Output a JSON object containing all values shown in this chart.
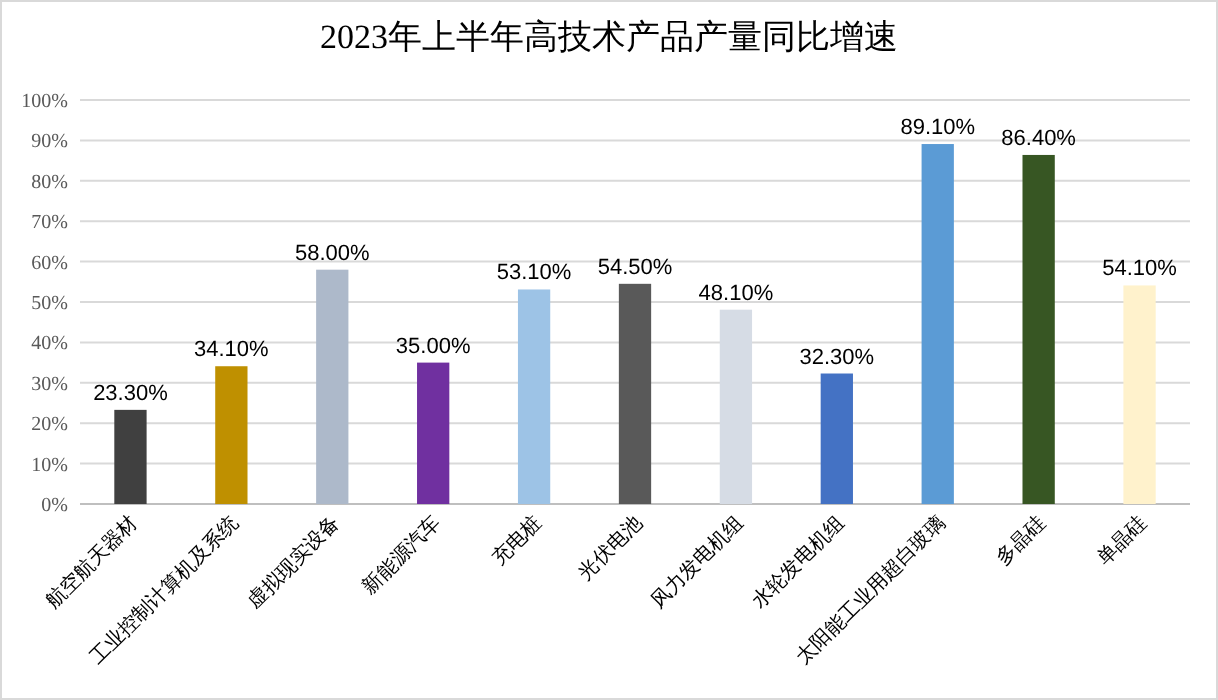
{
  "chart_data": {
    "type": "bar",
    "title": "2023年上半年高技术产品产量同比增速",
    "categories": [
      "航空航天器材",
      "工业控制计算机及系统",
      "虚拟现实设备",
      "新能源汽车",
      "充电桩",
      "光伏电池",
      "风力发电机组",
      "水轮发电机组",
      "太阳能工业用超白玻璃",
      "多晶硅",
      "单晶硅"
    ],
    "values": [
      23.3,
      34.1,
      58.0,
      35.0,
      53.1,
      54.5,
      48.1,
      32.3,
      89.1,
      86.4,
      54.1
    ],
    "value_labels": [
      "23.30%",
      "34.10%",
      "58.00%",
      "35.00%",
      "53.10%",
      "54.50%",
      "48.10%",
      "32.30%",
      "89.10%",
      "86.40%",
      "54.10%"
    ],
    "colors": [
      "#404040",
      "#bf9000",
      "#adb9ca",
      "#7030a0",
      "#9dc3e6",
      "#595959",
      "#d6dce5",
      "#4472c4",
      "#5b9bd5",
      "#375623",
      "#fff2cc"
    ],
    "ylim": [
      0,
      100
    ],
    "yticks": [
      {
        "value": 0,
        "label": "0%"
      },
      {
        "value": 10,
        "label": "10%"
      },
      {
        "value": 20,
        "label": "20%"
      },
      {
        "value": 30,
        "label": "30%"
      },
      {
        "value": 40,
        "label": "40%"
      },
      {
        "value": 50,
        "label": "50%"
      },
      {
        "value": 60,
        "label": "60%"
      },
      {
        "value": 70,
        "label": "70%"
      },
      {
        "value": 80,
        "label": "80%"
      },
      {
        "value": 90,
        "label": "90%"
      },
      {
        "value": 100,
        "label": "100%"
      }
    ],
    "grid": "y"
  }
}
